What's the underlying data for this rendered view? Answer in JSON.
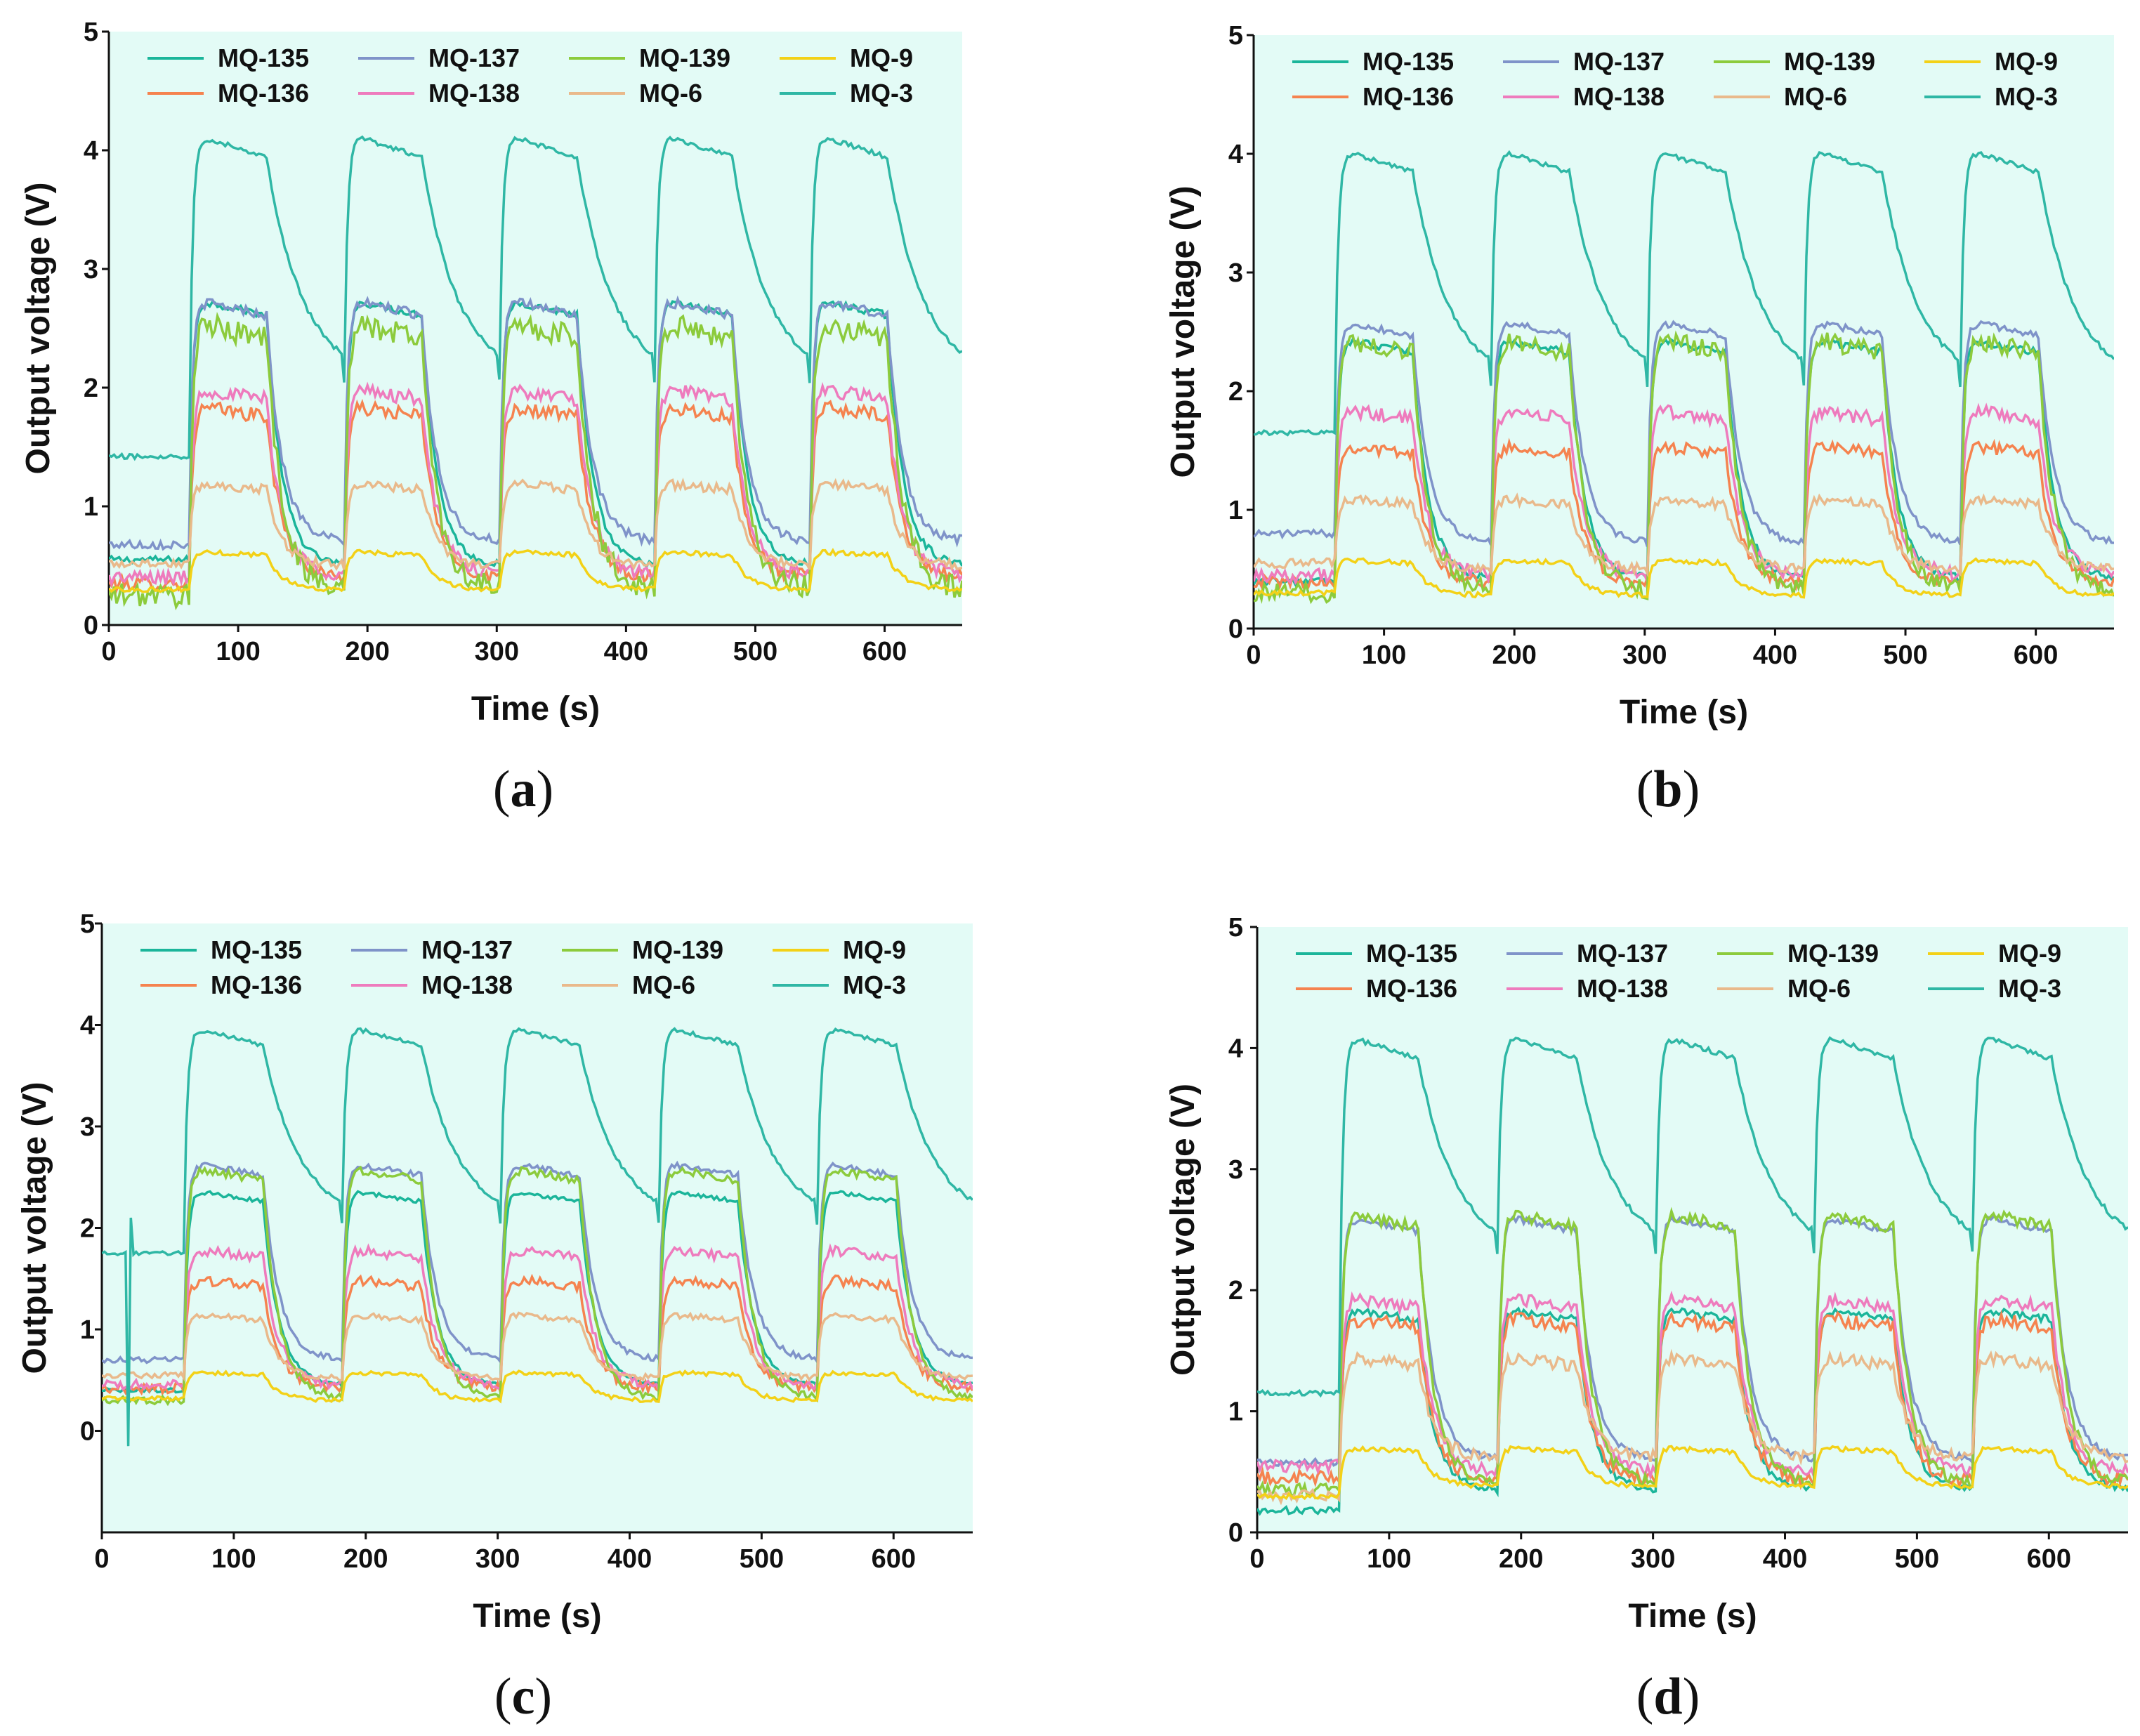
{
  "figure": {
    "panels_count": 4
  },
  "chart_data": [
    {
      "type": "line",
      "panel": "a",
      "caption": {
        "open": "(",
        "letter": "a",
        "close": ")"
      },
      "xlabel": "Time (s)",
      "ylabel": "Output voltage (V)",
      "xlim": [
        0,
        660
      ],
      "ylim": [
        0,
        5
      ],
      "xticks": [
        0,
        100,
        200,
        300,
        400,
        500,
        600
      ],
      "yticks": [
        0,
        1,
        2,
        3,
        4,
        5
      ],
      "legend_position": "top",
      "cycle": {
        "first_on": 62,
        "period": 120,
        "on_duration": 60
      },
      "series": [
        {
          "name": "MQ-135",
          "color": "#1bb59a",
          "baseline": 0.55,
          "high": 2.75,
          "low": 0.5,
          "noise": 0.03
        },
        {
          "name": "MQ-136",
          "color": "#f5834f",
          "baseline": 0.35,
          "high": 1.85,
          "low": 0.4,
          "noise": 0.06
        },
        {
          "name": "MQ-137",
          "color": "#7f93c9",
          "baseline": 0.68,
          "high": 2.75,
          "low": 0.7,
          "noise": 0.04
        },
        {
          "name": "MQ-138",
          "color": "#ee7bbd",
          "baseline": 0.4,
          "high": 2.0,
          "low": 0.42,
          "noise": 0.06
        },
        {
          "name": "MQ-139",
          "color": "#8ccb3c",
          "baseline": 0.25,
          "high": 2.55,
          "low": 0.3,
          "noise": 0.1
        },
        {
          "name": "MQ-6",
          "color": "#e9b98b",
          "baseline": 0.52,
          "high": 1.2,
          "low": 0.5,
          "noise": 0.04
        },
        {
          "name": "MQ-9",
          "color": "#f3d117",
          "baseline": 0.3,
          "high": 0.62,
          "low": 0.3,
          "noise": 0.02
        },
        {
          "name": "MQ-3",
          "color": "#2fb7a5",
          "baseline": 1.42,
          "high": 4.15,
          "low": 2.05,
          "noise": 0.02
        }
      ]
    },
    {
      "type": "line",
      "panel": "b",
      "caption": {
        "open": "(",
        "letter": "b",
        "close": ")"
      },
      "xlabel": "Time (s)",
      "ylabel": "Output voltage (V)",
      "xlim": [
        0,
        660
      ],
      "ylim": [
        0,
        5
      ],
      "xticks": [
        0,
        100,
        200,
        300,
        400,
        500,
        600
      ],
      "yticks": [
        0,
        1,
        2,
        3,
        4,
        5
      ],
      "legend_position": "top",
      "cycle": {
        "first_on": 62,
        "period": 120,
        "on_duration": 60
      },
      "series": [
        {
          "name": "MQ-135",
          "color": "#1bb59a",
          "baseline": 0.4,
          "high": 2.45,
          "low": 0.42,
          "noise": 0.03
        },
        {
          "name": "MQ-136",
          "color": "#f5834f",
          "baseline": 0.4,
          "high": 1.55,
          "low": 0.38,
          "noise": 0.05
        },
        {
          "name": "MQ-137",
          "color": "#7f93c9",
          "baseline": 0.8,
          "high": 2.6,
          "low": 0.72,
          "noise": 0.03
        },
        {
          "name": "MQ-138",
          "color": "#ee7bbd",
          "baseline": 0.45,
          "high": 1.85,
          "low": 0.45,
          "noise": 0.06
        },
        {
          "name": "MQ-139",
          "color": "#8ccb3c",
          "baseline": 0.3,
          "high": 2.45,
          "low": 0.32,
          "noise": 0.08
        },
        {
          "name": "MQ-6",
          "color": "#e9b98b",
          "baseline": 0.55,
          "high": 1.1,
          "low": 0.5,
          "noise": 0.04
        },
        {
          "name": "MQ-9",
          "color": "#f3d117",
          "baseline": 0.3,
          "high": 0.58,
          "low": 0.28,
          "noise": 0.02
        },
        {
          "name": "MQ-3",
          "color": "#2fb7a5",
          "baseline": 1.65,
          "high": 4.05,
          "low": 2.05,
          "noise": 0.02
        }
      ]
    },
    {
      "type": "line",
      "panel": "c",
      "caption": {
        "open": "(",
        "letter": "c",
        "close": ")"
      },
      "xlabel": "Time (s)",
      "ylabel": "Output voltage (V)",
      "xlim": [
        0,
        660
      ],
      "ylim": [
        -1,
        5
      ],
      "xticks": [
        0,
        100,
        200,
        300,
        400,
        500,
        600
      ],
      "yticks": [
        0,
        1,
        2,
        3,
        4,
        5
      ],
      "legend_position": "top",
      "cycle": {
        "first_on": 62,
        "period": 120,
        "on_duration": 60
      },
      "series": [
        {
          "name": "MQ-135",
          "color": "#1bb59a",
          "baseline": 0.4,
          "high": 2.38,
          "low": 0.45,
          "noise": 0.02
        },
        {
          "name": "MQ-136",
          "color": "#f5834f",
          "baseline": 0.42,
          "high": 1.5,
          "low": 0.42,
          "noise": 0.05
        },
        {
          "name": "MQ-137",
          "color": "#7f93c9",
          "baseline": 0.7,
          "high": 2.65,
          "low": 0.7,
          "noise": 0.03
        },
        {
          "name": "MQ-138",
          "color": "#ee7bbd",
          "baseline": 0.45,
          "high": 1.8,
          "low": 0.45,
          "noise": 0.05
        },
        {
          "name": "MQ-139",
          "color": "#8ccb3c",
          "baseline": 0.3,
          "high": 2.6,
          "low": 0.32,
          "noise": 0.04
        },
        {
          "name": "MQ-6",
          "color": "#e9b98b",
          "baseline": 0.55,
          "high": 1.15,
          "low": 0.52,
          "noise": 0.03
        },
        {
          "name": "MQ-9",
          "color": "#f3d117",
          "baseline": 0.32,
          "high": 0.58,
          "low": 0.3,
          "noise": 0.02
        },
        {
          "name": "MQ-3",
          "color": "#2fb7a5",
          "baseline": 1.75,
          "high": 4.0,
          "low": 2.05,
          "noise": 0.02
        }
      ]
    },
    {
      "type": "line",
      "panel": "d",
      "caption": {
        "open": "(",
        "letter": "d",
        "close": ")"
      },
      "xlabel": "Time (s)",
      "ylabel": "Output voltage (V)",
      "xlim": [
        0,
        660
      ],
      "ylim": [
        0,
        5
      ],
      "xticks": [
        0,
        100,
        200,
        300,
        400,
        500,
        600
      ],
      "yticks": [
        0,
        1,
        2,
        3,
        4,
        5
      ],
      "legend_position": "top",
      "cycle": {
        "first_on": 62,
        "period": 120,
        "on_duration": 60
      },
      "series": [
        {
          "name": "MQ-135",
          "color": "#1bb59a",
          "baseline": 0.18,
          "high": 1.85,
          "low": 0.35,
          "noise": 0.03
        },
        {
          "name": "MQ-136",
          "color": "#f5834f",
          "baseline": 0.45,
          "high": 1.78,
          "low": 0.42,
          "noise": 0.06
        },
        {
          "name": "MQ-137",
          "color": "#7f93c9",
          "baseline": 0.58,
          "high": 2.62,
          "low": 0.6,
          "noise": 0.03
        },
        {
          "name": "MQ-138",
          "color": "#ee7bbd",
          "baseline": 0.55,
          "high": 1.95,
          "low": 0.5,
          "noise": 0.05
        },
        {
          "name": "MQ-139",
          "color": "#8ccb3c",
          "baseline": 0.35,
          "high": 2.65,
          "low": 0.4,
          "noise": 0.05
        },
        {
          "name": "MQ-6",
          "color": "#e9b98b",
          "baseline": 0.3,
          "high": 1.45,
          "low": 0.62,
          "noise": 0.05
        },
        {
          "name": "MQ-9",
          "color": "#f3d117",
          "baseline": 0.3,
          "high": 0.7,
          "low": 0.38,
          "noise": 0.02
        },
        {
          "name": "MQ-3",
          "color": "#2fb7a5",
          "baseline": 1.15,
          "high": 4.12,
          "low": 2.3,
          "noise": 0.02
        }
      ]
    }
  ]
}
